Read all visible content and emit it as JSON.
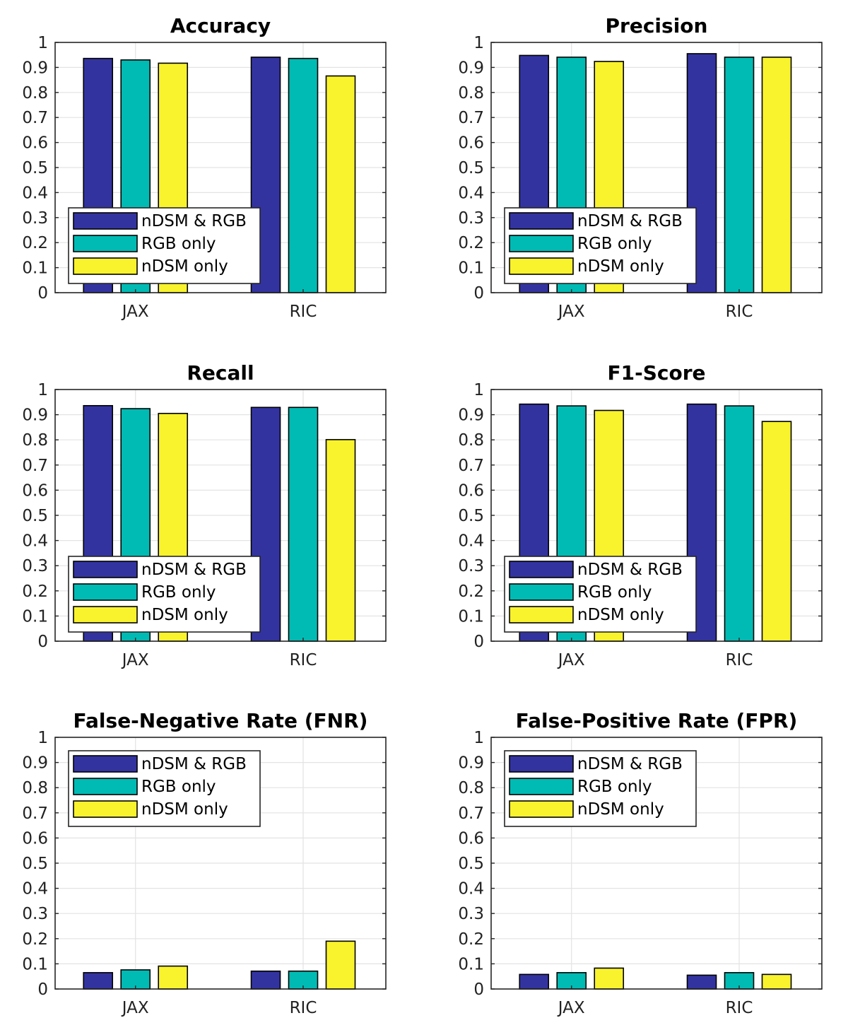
{
  "chart_data": [
    {
      "type": "bar",
      "title": "Accuracy",
      "categories": [
        "JAX",
        "RIC"
      ],
      "ylim": [
        0,
        1
      ],
      "yticks": [
        "0",
        "0.1",
        "0.2",
        "0.3",
        "0.4",
        "0.5",
        "0.6",
        "0.7",
        "0.8",
        "0.9",
        "1"
      ],
      "grid": true,
      "legend_position": "bottom-left",
      "series": [
        {
          "name": "nDSM & RGB",
          "color": "#3333a0",
          "values": [
            0.936,
            0.941
          ]
        },
        {
          "name": "RGB only",
          "color": "#00bbb3",
          "values": [
            0.93,
            0.936
          ]
        },
        {
          "name": "nDSM only",
          "color": "#f8f32c",
          "values": [
            0.917,
            0.866
          ]
        }
      ]
    },
    {
      "type": "bar",
      "title": "Precision",
      "categories": [
        "JAX",
        "RIC"
      ],
      "ylim": [
        0,
        1
      ],
      "yticks": [
        "0",
        "0.1",
        "0.2",
        "0.3",
        "0.4",
        "0.5",
        "0.6",
        "0.7",
        "0.8",
        "0.9",
        "1"
      ],
      "grid": true,
      "legend_position": "bottom-left",
      "series": [
        {
          "name": "nDSM & RGB",
          "color": "#3333a0",
          "values": [
            0.948,
            0.955
          ]
        },
        {
          "name": "RGB only",
          "color": "#00bbb3",
          "values": [
            0.941,
            0.941
          ]
        },
        {
          "name": "nDSM only",
          "color": "#f8f32c",
          "values": [
            0.924,
            0.941
          ]
        }
      ]
    },
    {
      "type": "bar",
      "title": "Recall",
      "categories": [
        "JAX",
        "RIC"
      ],
      "ylim": [
        0,
        1
      ],
      "yticks": [
        "0",
        "0.1",
        "0.2",
        "0.3",
        "0.4",
        "0.5",
        "0.6",
        "0.7",
        "0.8",
        "0.9",
        "1"
      ],
      "grid": true,
      "legend_position": "bottom-left",
      "series": [
        {
          "name": "nDSM & RGB",
          "color": "#3333a0",
          "values": [
            0.936,
            0.929
          ]
        },
        {
          "name": "RGB only",
          "color": "#00bbb3",
          "values": [
            0.924,
            0.929
          ]
        },
        {
          "name": "nDSM only",
          "color": "#f8f32c",
          "values": [
            0.905,
            0.801
          ]
        }
      ]
    },
    {
      "type": "bar",
      "title": "F1-Score",
      "categories": [
        "JAX",
        "RIC"
      ],
      "ylim": [
        0,
        1
      ],
      "yticks": [
        "0",
        "0.1",
        "0.2",
        "0.3",
        "0.4",
        "0.5",
        "0.6",
        "0.7",
        "0.8",
        "0.9",
        "1"
      ],
      "grid": true,
      "legend_position": "bottom-left",
      "series": [
        {
          "name": "nDSM & RGB",
          "color": "#3333a0",
          "values": [
            0.942,
            0.942
          ]
        },
        {
          "name": "RGB only",
          "color": "#00bbb3",
          "values": [
            0.935,
            0.935
          ]
        },
        {
          "name": "nDSM only",
          "color": "#f8f32c",
          "values": [
            0.917,
            0.873
          ]
        }
      ]
    },
    {
      "type": "bar",
      "title": "False-Negative Rate (FNR)",
      "categories": [
        "JAX",
        "RIC"
      ],
      "ylim": [
        0,
        1
      ],
      "yticks": [
        "0",
        "0.1",
        "0.2",
        "0.3",
        "0.4",
        "0.5",
        "0.6",
        "0.7",
        "0.8",
        "0.9",
        "1"
      ],
      "grid": true,
      "legend_position": "top-left",
      "series": [
        {
          "name": "nDSM & RGB",
          "color": "#3333a0",
          "values": [
            0.065,
            0.071
          ]
        },
        {
          "name": "RGB only",
          "color": "#00bbb3",
          "values": [
            0.076,
            0.071
          ]
        },
        {
          "name": "nDSM only",
          "color": "#f8f32c",
          "values": [
            0.091,
            0.19
          ]
        }
      ]
    },
    {
      "type": "bar",
      "title": "False-Positive Rate (FPR)",
      "categories": [
        "JAX",
        "RIC"
      ],
      "ylim": [
        0,
        1
      ],
      "yticks": [
        "0",
        "0.1",
        "0.2",
        "0.3",
        "0.4",
        "0.5",
        "0.6",
        "0.7",
        "0.8",
        "0.9",
        "1"
      ],
      "grid": true,
      "legend_position": "top-left",
      "series": [
        {
          "name": "nDSM & RGB",
          "color": "#3333a0",
          "values": [
            0.058,
            0.055
          ]
        },
        {
          "name": "RGB only",
          "color": "#00bbb3",
          "values": [
            0.065,
            0.065
          ]
        },
        {
          "name": "nDSM only",
          "color": "#f8f32c",
          "values": [
            0.083,
            0.058
          ]
        }
      ]
    }
  ]
}
